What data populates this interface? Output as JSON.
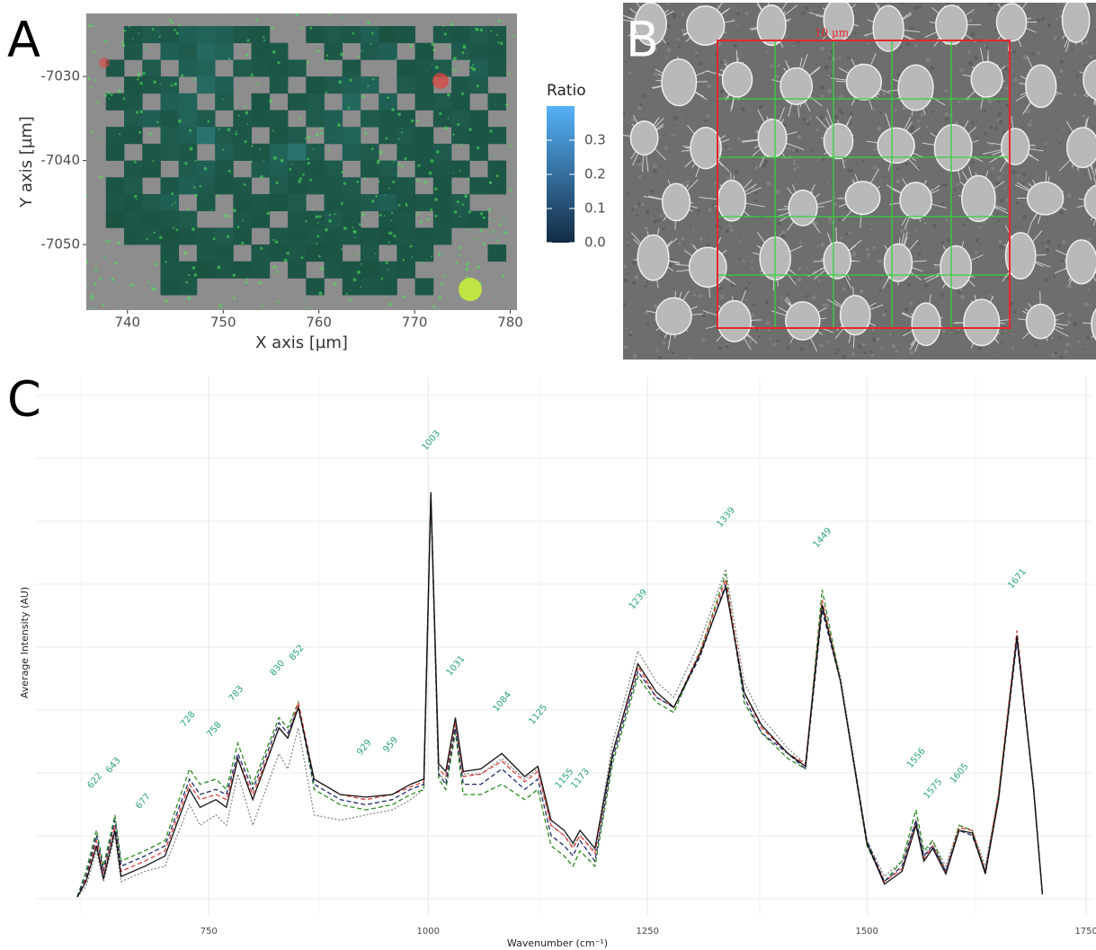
{
  "chart_data": [
    {
      "type": "heatmap",
      "label": "A",
      "xlabel": "X axis [µm]",
      "ylabel": "Y axis [µm]",
      "legend_title": "Ratio",
      "xlim": [
        735.7,
        780.7
      ],
      "ylim": [
        -7057.8,
        -7022.5
      ],
      "xticks": [
        740,
        750,
        760,
        770,
        780
      ],
      "yticks": [
        -7030,
        -7040,
        -7050
      ],
      "clim": [
        0,
        0.4
      ],
      "colors": [
        "#132b43",
        "#56b1f7"
      ],
      "cticks": [
        {
          "value": 0,
          "label": "0.0"
        },
        0.1,
        0.2,
        0.3
      ],
      "x": [
        738.7,
        740.6,
        742.5,
        744.4,
        746.3,
        748.2,
        750.1,
        752.0,
        753.9,
        755.8,
        757.7,
        759.6,
        761.5,
        763.4,
        765.3,
        767.2,
        769.1,
        771.0,
        772.9,
        774.8,
        776.7,
        778.6
      ],
      "y": [
        -7025,
        -7027,
        -7029,
        -7031,
        -7033,
        -7035,
        -7037,
        -7039,
        -7041,
        -7043,
        -7045,
        -7047,
        -7049,
        -7051,
        -7053,
        -7055
      ],
      "z": [
        [
          null,
          0.05,
          0.08,
          0.06,
          0.1,
          0.12,
          0.1,
          0.06,
          0.05,
          null,
          null,
          0.05,
          0.08,
          0.06,
          0.1,
          0.04,
          0.05,
          null,
          0.06,
          0.05,
          0.08,
          0.06
        ],
        [
          null,
          0.06,
          null,
          0.1,
          0.08,
          0.15,
          0.12,
          null,
          0.05,
          0.06,
          null,
          null,
          0.06,
          null,
          0.08,
          0.1,
          null,
          0.05,
          null,
          0.08,
          0.06,
          0.05
        ],
        [
          0.06,
          null,
          0.08,
          null,
          0.1,
          0.12,
          null,
          0.08,
          0.06,
          0.05,
          0.07,
          null,
          null,
          0.06,
          null,
          null,
          0.05,
          0.06,
          0.08,
          null,
          0.1,
          0.06
        ],
        [
          null,
          0.05,
          0.06,
          0.08,
          null,
          0.16,
          0.1,
          null,
          null,
          0.06,
          null,
          0.05,
          0.08,
          0.1,
          0.12,
          null,
          0.08,
          0.06,
          null,
          0.06,
          0.08,
          null
        ],
        [
          0.05,
          0.06,
          null,
          0.1,
          0.12,
          null,
          0.08,
          null,
          0.05,
          null,
          0.06,
          0.08,
          null,
          0.14,
          null,
          0.1,
          null,
          0.06,
          0.08,
          0.05,
          null,
          0.06
        ],
        [
          null,
          0.08,
          0.1,
          0.06,
          0.12,
          0.08,
          null,
          0.06,
          0.05,
          0.06,
          null,
          0.08,
          0.1,
          null,
          0.08,
          0.06,
          0.05,
          null,
          0.06,
          0.08,
          0.05,
          null
        ],
        [
          0.06,
          0.05,
          null,
          0.08,
          0.1,
          0.2,
          0.08,
          0.06,
          null,
          0.05,
          0.08,
          null,
          0.1,
          0.12,
          null,
          0.06,
          0.08,
          0.05,
          null,
          0.06,
          0.05,
          0.06
        ],
        [
          0.05,
          null,
          0.06,
          0.08,
          0.06,
          null,
          0.1,
          0.06,
          0.05,
          0.12,
          0.2,
          0.08,
          null,
          0.1,
          0.08,
          null,
          0.06,
          0.05,
          0.08,
          null,
          0.06,
          null
        ],
        [
          null,
          0.06,
          0.05,
          null,
          0.08,
          0.1,
          0.06,
          null,
          0.08,
          0.1,
          0.06,
          0.05,
          0.08,
          null,
          0.06,
          0.08,
          null,
          0.05,
          0.06,
          0.05,
          null,
          0.05
        ],
        [
          0.05,
          0.08,
          null,
          0.06,
          0.1,
          0.08,
          0.05,
          0.06,
          null,
          0.08,
          0.05,
          0.06,
          0.06,
          0.08,
          null,
          0.05,
          0.06,
          null,
          0.05,
          null,
          0.06,
          0.05
        ],
        [
          0.06,
          0.05,
          0.08,
          0.1,
          null,
          0.06,
          null,
          0.05,
          0.06,
          0.05,
          0.08,
          null,
          0.05,
          0.06,
          0.08,
          0.1,
          0.05,
          0.06,
          0.05,
          0.08,
          null,
          null
        ],
        [
          0.04,
          0.06,
          0.05,
          0.06,
          0.08,
          null,
          null,
          0.06,
          0.05,
          null,
          0.06,
          0.05,
          0.08,
          0.05,
          null,
          0.05,
          0.06,
          null,
          0.05,
          0.06,
          0.05,
          null
        ],
        [
          null,
          0.05,
          0.06,
          0.04,
          0.05,
          0.06,
          0.08,
          0.05,
          null,
          0.06,
          0.05,
          0.06,
          0.05,
          0.06,
          0.05,
          0.04,
          0.06,
          0.05,
          0.06,
          null,
          null,
          null
        ],
        [
          null,
          null,
          null,
          0.05,
          null,
          0.06,
          0.05,
          null,
          0.06,
          0.05,
          0.06,
          0.04,
          0.05,
          null,
          0.06,
          null,
          0.05,
          0.06,
          null,
          null,
          null,
          0.05
        ],
        [
          null,
          null,
          null,
          0.06,
          0.05,
          0.04,
          0.06,
          0.05,
          0.06,
          null,
          0.05,
          null,
          0.06,
          0.05,
          0.04,
          0.06,
          0.05,
          null,
          null,
          null,
          null,
          null
        ],
        [
          null,
          null,
          null,
          0.05,
          0.06,
          null,
          null,
          null,
          null,
          null,
          null,
          0.05,
          null,
          0.05,
          0.06,
          0.05,
          null,
          0.06,
          null,
          null,
          null,
          null
        ]
      ]
    },
    {
      "type": "image",
      "label": "B",
      "annotation": "10 µm",
      "color": "#e8262a",
      "grid_color": "#35d23a"
    },
    {
      "type": "line",
      "label": "C",
      "xlabel": "Wavenumber (cm⁻¹)",
      "ylabel": "Average Intensity (AU)",
      "xlim": [
        553,
        1757
      ],
      "ylim": [
        0,
        1
      ],
      "xticks": [
        750,
        1000,
        1250,
        1500,
        1750
      ],
      "grid": true,
      "peak_color": "#2aa37a",
      "peaks": [
        622,
        643,
        677,
        728,
        758,
        783,
        830,
        852,
        929,
        959,
        1003,
        1031,
        1084,
        1125,
        1155,
        1173,
        1239,
        1339,
        1449,
        1556,
        1575,
        1605,
        1671
      ],
      "x": [
        600,
        610,
        622,
        630,
        643,
        650,
        677,
        700,
        728,
        740,
        758,
        770,
        783,
        800,
        830,
        840,
        852,
        870,
        900,
        929,
        959,
        980,
        995,
        1003,
        1012,
        1020,
        1031,
        1040,
        1060,
        1084,
        1110,
        1125,
        1140,
        1155,
        1165,
        1173,
        1190,
        1210,
        1239,
        1260,
        1280,
        1310,
        1339,
        1360,
        1380,
        1410,
        1430,
        1449,
        1470,
        1500,
        1520,
        1540,
        1556,
        1565,
        1575,
        1590,
        1605,
        1620,
        1635,
        1650,
        1671,
        1690,
        1700
      ],
      "series": [
        {
          "color": "#888888",
          "values": [
            0.0,
            0.02,
            0.09,
            0.03,
            0.12,
            0.03,
            0.05,
            0.06,
            0.18,
            0.14,
            0.16,
            0.14,
            0.24,
            0.14,
            0.28,
            0.25,
            0.33,
            0.16,
            0.15,
            0.16,
            0.17,
            0.19,
            0.21,
            0.78,
            0.24,
            0.23,
            0.34,
            0.24,
            0.24,
            0.27,
            0.23,
            0.25,
            0.14,
            0.12,
            0.1,
            0.12,
            0.09,
            0.3,
            0.48,
            0.42,
            0.39,
            0.5,
            0.64,
            0.42,
            0.35,
            0.29,
            0.26,
            0.57,
            0.43,
            0.11,
            0.04,
            0.07,
            0.15,
            0.08,
            0.11,
            0.06,
            0.14,
            0.13,
            0.06,
            0.2,
            0.5,
            0.22,
            0.005
          ]
        },
        {
          "color": "#2e8b22",
          "values": [
            0.0,
            0.05,
            0.13,
            0.06,
            0.16,
            0.07,
            0.09,
            0.11,
            0.25,
            0.22,
            0.23,
            0.21,
            0.3,
            0.22,
            0.35,
            0.33,
            0.38,
            0.21,
            0.18,
            0.17,
            0.18,
            0.2,
            0.21,
            0.78,
            0.23,
            0.21,
            0.32,
            0.2,
            0.2,
            0.22,
            0.19,
            0.21,
            0.1,
            0.08,
            0.06,
            0.09,
            0.06,
            0.26,
            0.43,
            0.38,
            0.36,
            0.48,
            0.63,
            0.38,
            0.32,
            0.27,
            0.25,
            0.6,
            0.42,
            0.1,
            0.03,
            0.07,
            0.17,
            0.09,
            0.11,
            0.05,
            0.14,
            0.13,
            0.05,
            0.2,
            0.51,
            0.21,
            0.005
          ]
        },
        {
          "color": "#e0403a",
          "values": [
            0.0,
            0.035,
            0.11,
            0.045,
            0.14,
            0.05,
            0.07,
            0.09,
            0.22,
            0.19,
            0.2,
            0.19,
            0.27,
            0.2,
            0.33,
            0.31,
            0.38,
            0.23,
            0.2,
            0.19,
            0.2,
            0.215,
            0.225,
            0.78,
            0.25,
            0.235,
            0.34,
            0.235,
            0.24,
            0.265,
            0.225,
            0.245,
            0.14,
            0.12,
            0.095,
            0.12,
            0.085,
            0.28,
            0.45,
            0.39,
            0.37,
            0.48,
            0.62,
            0.4,
            0.33,
            0.28,
            0.26,
            0.58,
            0.42,
            0.105,
            0.03,
            0.055,
            0.145,
            0.075,
            0.1,
            0.05,
            0.135,
            0.13,
            0.05,
            0.2,
            0.52,
            0.21,
            0.005
          ]
        },
        {
          "color": "#1f2a6b",
          "values": [
            0.0,
            0.04,
            0.12,
            0.05,
            0.15,
            0.06,
            0.08,
            0.1,
            0.23,
            0.2,
            0.21,
            0.2,
            0.28,
            0.21,
            0.34,
            0.32,
            0.37,
            0.22,
            0.19,
            0.18,
            0.19,
            0.21,
            0.22,
            0.79,
            0.24,
            0.22,
            0.33,
            0.22,
            0.22,
            0.25,
            0.21,
            0.23,
            0.12,
            0.1,
            0.08,
            0.11,
            0.07,
            0.27,
            0.44,
            0.39,
            0.37,
            0.47,
            0.61,
            0.39,
            0.32,
            0.28,
            0.25,
            0.56,
            0.42,
            0.11,
            0.03,
            0.06,
            0.15,
            0.08,
            0.1,
            0.05,
            0.13,
            0.12,
            0.05,
            0.19,
            0.5,
            0.21,
            0.005
          ]
        },
        {
          "color": "#111111",
          "values": [
            0.0,
            0.03,
            0.1,
            0.035,
            0.13,
            0.04,
            0.06,
            0.08,
            0.21,
            0.175,
            0.19,
            0.175,
            0.27,
            0.19,
            0.33,
            0.31,
            0.37,
            0.23,
            0.2,
            0.195,
            0.2,
            0.22,
            0.23,
            0.79,
            0.26,
            0.245,
            0.35,
            0.245,
            0.25,
            0.28,
            0.235,
            0.255,
            0.15,
            0.13,
            0.105,
            0.13,
            0.095,
            0.28,
            0.455,
            0.4,
            0.37,
            0.475,
            0.605,
            0.4,
            0.335,
            0.28,
            0.255,
            0.57,
            0.42,
            0.105,
            0.025,
            0.05,
            0.14,
            0.07,
            0.095,
            0.045,
            0.13,
            0.125,
            0.045,
            0.19,
            0.51,
            0.21,
            0.005
          ]
        }
      ]
    }
  ]
}
